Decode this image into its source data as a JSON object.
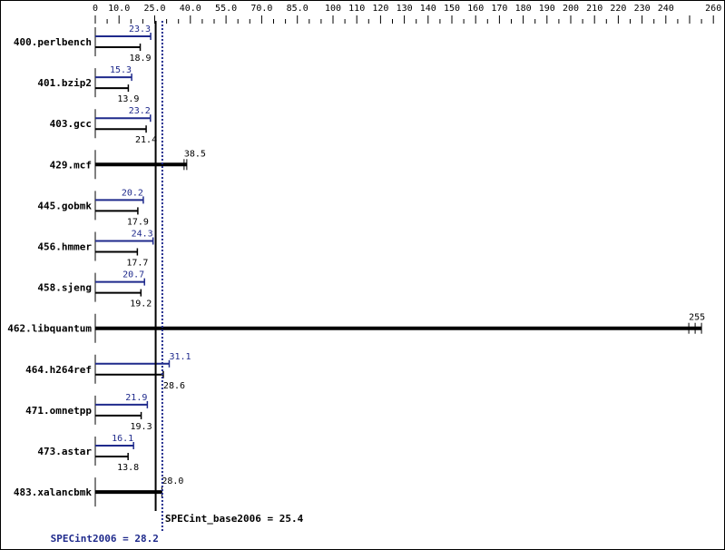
{
  "chart_data": {
    "type": "bar",
    "title": "",
    "xlabel": "",
    "ylabel": "",
    "xlim": [
      0,
      260
    ],
    "axis_ticks": [
      "0",
      "10.0",
      "25.0",
      "40.0",
      "55.0",
      "70.0",
      "85.0",
      "100",
      "110",
      "120",
      "130",
      "140",
      "150",
      "160",
      "170",
      "180",
      "190",
      "200",
      "210",
      "220",
      "230",
      "240",
      "260"
    ],
    "categories": [
      "400.perlbench",
      "401.bzip2",
      "403.gcc",
      "429.mcf",
      "445.gobmk",
      "456.hmmer",
      "458.sjeng",
      "462.libquantum",
      "464.h264ref",
      "471.omnetpp",
      "473.astar",
      "483.xalancbmk"
    ],
    "series": [
      {
        "name": "SPECint2006 (peak)",
        "color": "#1f2a8c",
        "values": [
          23.3,
          15.3,
          23.2,
          null,
          20.2,
          24.3,
          20.7,
          null,
          31.1,
          21.9,
          16.1,
          null
        ]
      },
      {
        "name": "SPECint_base2006",
        "color": "#000000",
        "values": [
          18.9,
          13.9,
          21.4,
          38.5,
          17.9,
          17.7,
          19.2,
          255,
          28.6,
          19.3,
          13.8,
          28.0
        ]
      }
    ],
    "reference_lines": [
      {
        "label": "SPECint_base2006 = 25.4",
        "value": 25.4,
        "color": "#000000",
        "style": "solid"
      },
      {
        "label": "SPECint2006 = 28.2",
        "value": 28.2,
        "color": "#1f2a8c",
        "style": "dotted"
      }
    ]
  },
  "labels": {
    "base_summary": "SPECint_base2006 = 25.4",
    "peak_summary": "SPECint2006 = 28.2"
  }
}
